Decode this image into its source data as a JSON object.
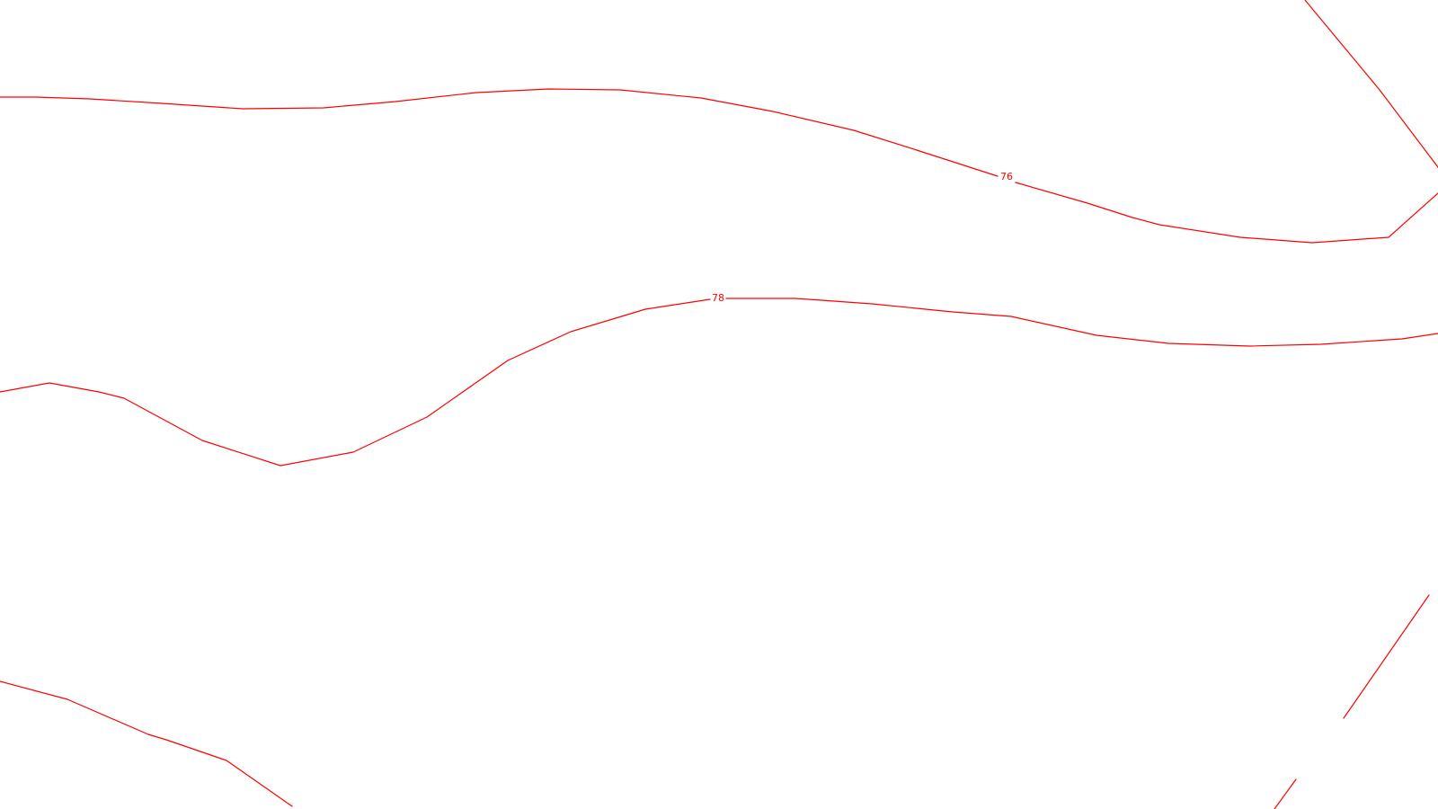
{
  "map": {
    "background_color": "#ffffff",
    "contour_color": "#ff0000",
    "contours": [
      {
        "id": "contour-76",
        "elevation_label": "76"
      },
      {
        "id": "contour-78",
        "elevation_label": "78"
      },
      {
        "id": "contour-lower-left",
        "elevation_label": ""
      },
      {
        "id": "contour-right-edge",
        "elevation_label": ""
      }
    ]
  }
}
